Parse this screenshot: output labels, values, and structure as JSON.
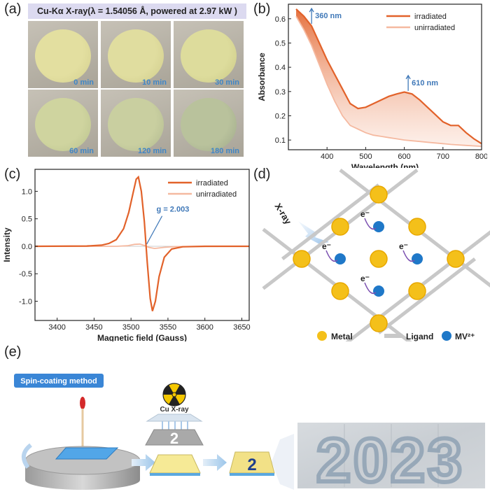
{
  "panel_labels": {
    "a": "(a)",
    "b": "(b)",
    "c": "(c)",
    "d": "(d)",
    "e": "(e)"
  },
  "panel_a": {
    "header": "Cu-Kα X-ray(λ = 1.54056 Å, powered at 2.97 kW )",
    "samples": [
      {
        "label": "0 min",
        "disk": "#e3dfa0",
        "edge": "#d3cf8e"
      },
      {
        "label": "10 min",
        "disk": "#e0dd9f",
        "edge": "#cfcb8a"
      },
      {
        "label": "30 min",
        "disk": "#dddc9c",
        "edge": "#cac886"
      },
      {
        "label": "60 min",
        "disk": "#cfd49f",
        "edge": "#b9c28d"
      },
      {
        "label": "120 min",
        "disk": "#c9cfa0",
        "edge": "#b0b88f"
      },
      {
        "label": "180 min",
        "disk": "#b9c29c",
        "edge": "#9ea88a"
      }
    ]
  },
  "chart_data": [
    {
      "id": "b",
      "type": "line",
      "xlabel": "Wavelength (nm)",
      "ylabel": "Absorbance",
      "xlim": [
        300,
        800
      ],
      "ylim": [
        0.06,
        0.66
      ],
      "xticks": [
        400,
        500,
        600,
        700,
        800
      ],
      "yticks": [
        0.1,
        0.2,
        0.3,
        0.4,
        0.5,
        0.6
      ],
      "legend": "top-right",
      "series": [
        {
          "name": "irradiated",
          "color": "#e2622a",
          "x": [
            320,
            340,
            360,
            380,
            400,
            420,
            440,
            460,
            480,
            500,
            520,
            540,
            560,
            580,
            600,
            620,
            640,
            660,
            680,
            700,
            720,
            740,
            760,
            780,
            800
          ],
          "y": [
            0.64,
            0.61,
            0.57,
            0.5,
            0.43,
            0.37,
            0.31,
            0.25,
            0.23,
            0.235,
            0.25,
            0.265,
            0.28,
            0.29,
            0.298,
            0.29,
            0.265,
            0.235,
            0.205,
            0.175,
            0.16,
            0.16,
            0.13,
            0.105,
            0.085
          ]
        },
        {
          "name": "unirradiated",
          "color": "#f5b9a0",
          "x": [
            320,
            340,
            360,
            380,
            400,
            420,
            440,
            460,
            480,
            500,
            520,
            540,
            560,
            580,
            600,
            620,
            640,
            660,
            680,
            700,
            720,
            740,
            760,
            780,
            800
          ],
          "y": [
            0.61,
            0.555,
            0.49,
            0.41,
            0.33,
            0.26,
            0.2,
            0.16,
            0.145,
            0.13,
            0.12,
            0.115,
            0.11,
            0.105,
            0.1,
            0.097,
            0.094,
            0.091,
            0.088,
            0.085,
            0.082,
            0.08,
            0.078,
            0.076,
            0.074
          ]
        }
      ],
      "annotations": [
        {
          "text": "360 nm",
          "x": 360
        },
        {
          "text": "610 nm",
          "x": 610
        }
      ]
    },
    {
      "id": "c",
      "type": "line",
      "xlabel": "Magnetic field (Gauss)",
      "ylabel": "Intensity",
      "xlim": [
        3370,
        3660
      ],
      "ylim": [
        -1.35,
        1.4
      ],
      "xticks": [
        3400,
        3450,
        3500,
        3550,
        3600,
        3650
      ],
      "yticks": [
        -1.0,
        -0.5,
        0.0,
        0.5,
        1.0
      ],
      "legend": "top-right",
      "series": [
        {
          "name": "irradiated",
          "color": "#e2622a",
          "x": [
            3370,
            3440,
            3460,
            3470,
            3480,
            3490,
            3497,
            3503,
            3507,
            3510,
            3514,
            3518,
            3522,
            3526,
            3529,
            3533,
            3538,
            3545,
            3555,
            3570,
            3600,
            3660
          ],
          "y": [
            0,
            0.005,
            0.02,
            0.05,
            0.12,
            0.32,
            0.62,
            0.98,
            1.22,
            1.26,
            1.0,
            0.45,
            -0.3,
            -0.95,
            -1.18,
            -1.0,
            -0.55,
            -0.2,
            -0.05,
            -0.01,
            0,
            0
          ]
        },
        {
          "name": "unirradiated",
          "color": "#f5b9a0",
          "x": [
            3370,
            3480,
            3495,
            3505,
            3512,
            3518,
            3524,
            3532,
            3545,
            3560,
            3660
          ],
          "y": [
            0,
            0,
            0.01,
            0.035,
            0.04,
            0.015,
            -0.02,
            -0.04,
            -0.02,
            -0.005,
            0
          ]
        }
      ],
      "annotations": [
        {
          "text": "g = 2.003",
          "x": 3525,
          "y": 0.0
        }
      ]
    }
  ],
  "panel_d": {
    "xray_label": "X-ray",
    "electron": "e⁻",
    "legend": {
      "metal": "Metal",
      "ligand": "Ligand",
      "mv": "MV²⁺"
    },
    "colors": {
      "metal": "#f4c01a",
      "ligand": "#c8c8c8",
      "mv": "#1f78c8"
    }
  },
  "panel_e": {
    "method_label": "Spin-coating method",
    "source_label": "Cu X-ray",
    "mask_digit": "2",
    "film_digit": "2",
    "year_text": "2023",
    "accent_color": "#3a86d6"
  }
}
